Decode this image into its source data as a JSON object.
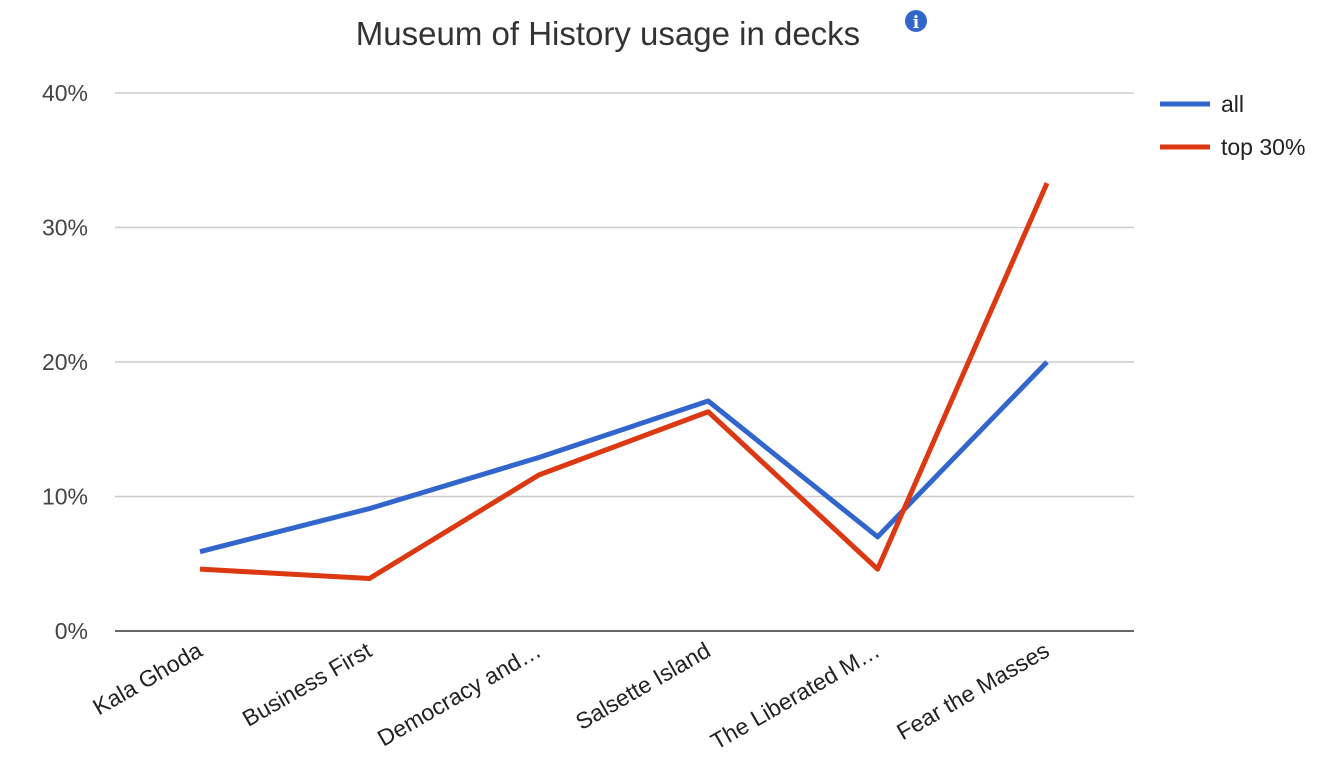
{
  "chart_data": {
    "type": "line",
    "title": "Museum of History usage in decks",
    "categories": [
      "Kala Ghoda",
      "Business First",
      "Democracy and…",
      "Salsette Island",
      "The Liberated M…",
      "Fear the Masses"
    ],
    "series": [
      {
        "name": "all",
        "color": "#3366cc",
        "values": [
          5.9,
          9.1,
          12.9,
          17.1,
          7.0,
          20.0
        ]
      },
      {
        "name": "top 30%",
        "color": "#dc3912",
        "values": [
          4.6,
          3.9,
          11.6,
          16.3,
          4.6,
          33.3
        ]
      }
    ],
    "yticks": [
      "0%",
      "10%",
      "20%",
      "30%",
      "40%"
    ],
    "ylim": [
      0,
      40
    ],
    "grid": true,
    "legend_position": "right",
    "info_icon": "info-icon"
  }
}
